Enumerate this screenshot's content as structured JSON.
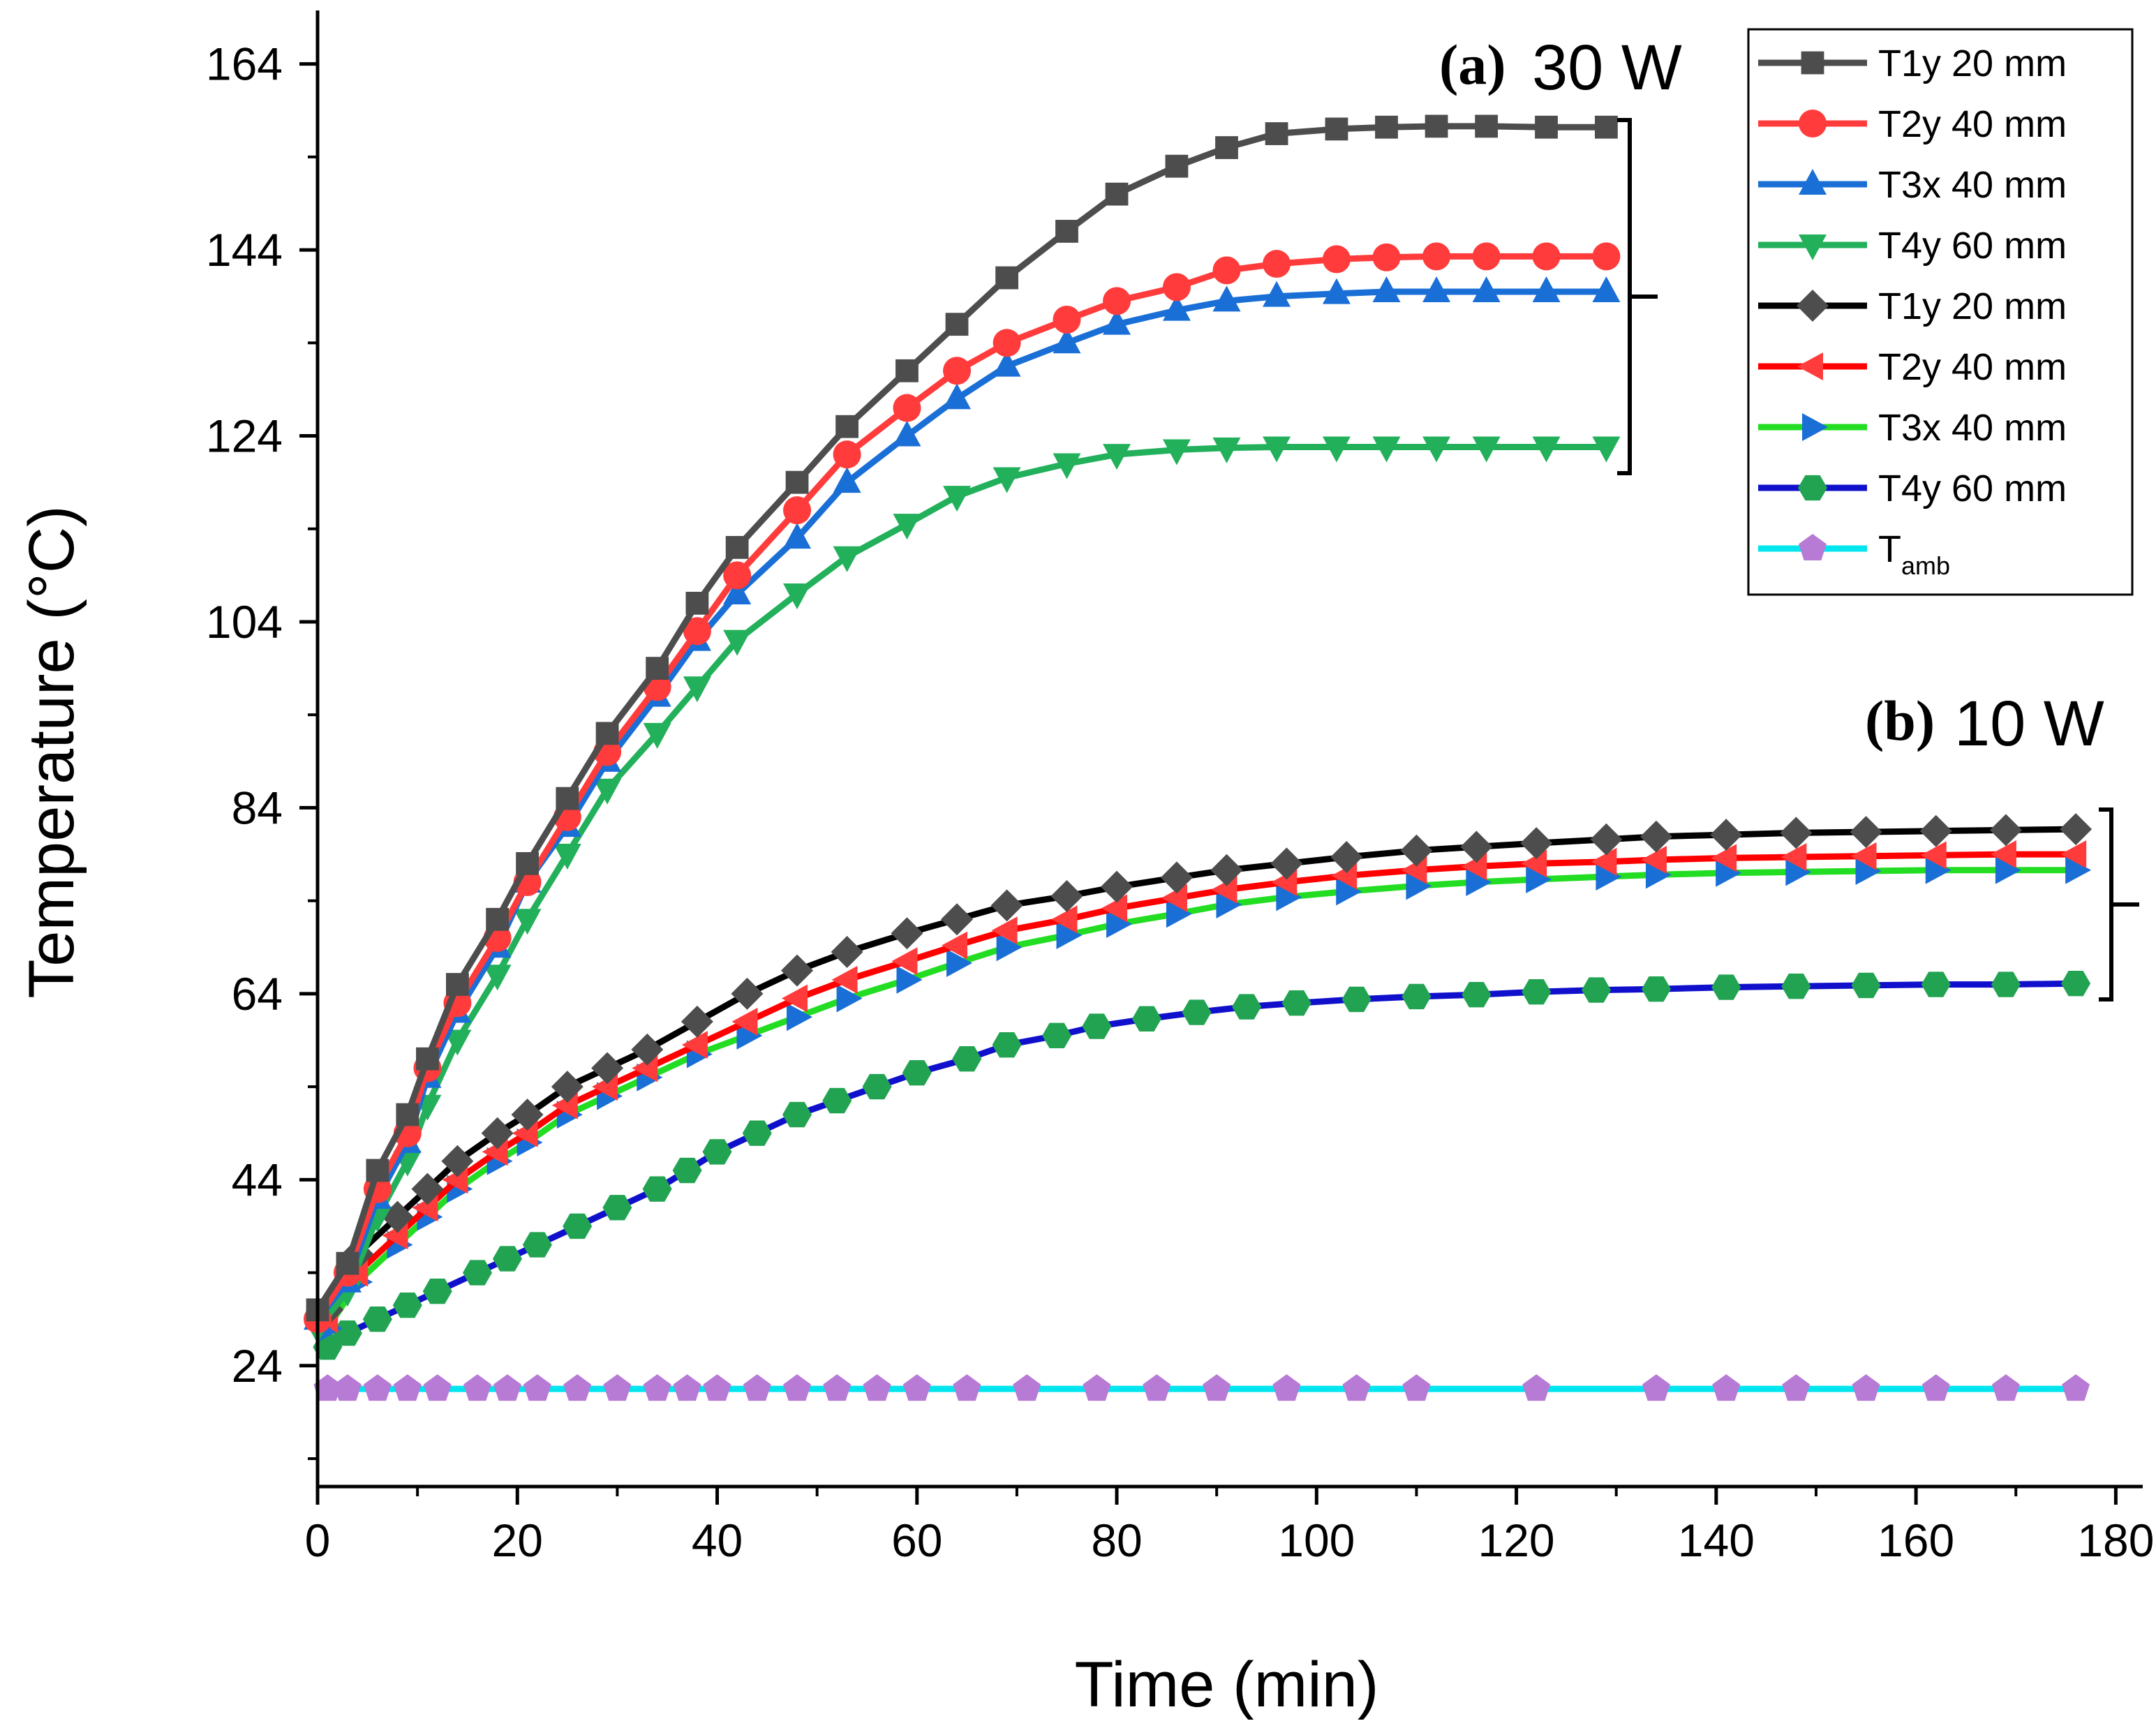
{
  "chart_data": {
    "type": "line",
    "xlabel": "Time (min)",
    "ylabel": "Temperature (°C)",
    "xlim": [
      0,
      182
    ],
    "ylim": [
      11,
      169
    ],
    "xticks": [
      0,
      20,
      40,
      60,
      80,
      100,
      120,
      140,
      160,
      180
    ],
    "yticks": [
      24,
      44,
      64,
      84,
      104,
      124,
      144,
      164
    ],
    "grid": false,
    "legend_position": "top-right",
    "annotations": [
      {
        "letter": "(a)",
        "text": "30 W"
      },
      {
        "letter": "(b)",
        "text": "10 W"
      }
    ],
    "series": [
      {
        "name": "T1y 20 mm",
        "group": "30 W",
        "color": "#4d4d4d",
        "marker": "square",
        "points": [
          [
            0,
            30
          ],
          [
            3,
            35
          ],
          [
            6,
            45
          ],
          [
            9,
            51
          ],
          [
            11,
            57
          ],
          [
            14,
            65
          ],
          [
            18,
            72
          ],
          [
            21,
            78
          ],
          [
            25,
            85
          ],
          [
            29,
            92
          ],
          [
            34,
            99
          ],
          [
            38,
            106
          ],
          [
            42,
            112
          ],
          [
            48,
            119
          ],
          [
            53,
            125
          ],
          [
            59,
            131
          ],
          [
            64,
            136
          ],
          [
            69,
            141
          ],
          [
            75,
            146
          ],
          [
            80,
            150
          ],
          [
            86,
            153
          ],
          [
            91,
            155
          ],
          [
            96,
            156.5
          ],
          [
            102,
            157
          ],
          [
            107,
            157.2
          ],
          [
            112,
            157.3
          ],
          [
            117,
            157.3
          ],
          [
            123,
            157.2
          ],
          [
            129,
            157.2
          ]
        ]
      },
      {
        "name": "T2y 40 mm",
        "group": "30 W",
        "color": "#ff3b3b",
        "marker": "circle",
        "points": [
          [
            0,
            29
          ],
          [
            3,
            34
          ],
          [
            6,
            43
          ],
          [
            9,
            49
          ],
          [
            11,
            56
          ],
          [
            14,
            63
          ],
          [
            18,
            70
          ],
          [
            21,
            76
          ],
          [
            25,
            83
          ],
          [
            29,
            90
          ],
          [
            34,
            97
          ],
          [
            38,
            103
          ],
          [
            42,
            109
          ],
          [
            48,
            116
          ],
          [
            53,
            122
          ],
          [
            59,
            127
          ],
          [
            64,
            131
          ],
          [
            69,
            134
          ],
          [
            75,
            136.5
          ],
          [
            80,
            138.5
          ],
          [
            86,
            140
          ],
          [
            91,
            141.8
          ],
          [
            96,
            142.5
          ],
          [
            102,
            143
          ],
          [
            107,
            143.2
          ],
          [
            112,
            143.3
          ],
          [
            117,
            143.3
          ],
          [
            123,
            143.3
          ],
          [
            129,
            143.3
          ]
        ]
      },
      {
        "name": "T3x 40 mm",
        "group": "30 W",
        "color": "#1a6fd6",
        "marker": "triangle-up",
        "points": [
          [
            0,
            29
          ],
          [
            3,
            33
          ],
          [
            6,
            42
          ],
          [
            9,
            48
          ],
          [
            11,
            55
          ],
          [
            14,
            62
          ],
          [
            18,
            69
          ],
          [
            21,
            76
          ],
          [
            25,
            82
          ],
          [
            29,
            89
          ],
          [
            34,
            96
          ],
          [
            38,
            102
          ],
          [
            42,
            107
          ],
          [
            48,
            113
          ],
          [
            53,
            119
          ],
          [
            59,
            124
          ],
          [
            64,
            128
          ],
          [
            69,
            131.5
          ],
          [
            75,
            134
          ],
          [
            80,
            136
          ],
          [
            86,
            137.5
          ],
          [
            91,
            138.5
          ],
          [
            96,
            139
          ],
          [
            102,
            139.3
          ],
          [
            107,
            139.5
          ],
          [
            112,
            139.5
          ],
          [
            117,
            139.5
          ],
          [
            123,
            139.5
          ],
          [
            129,
            139.5
          ]
        ]
      },
      {
        "name": "T4y 60 mm",
        "group": "30 W",
        "color": "#22b05b",
        "marker": "triangle-down",
        "points": [
          [
            0,
            28
          ],
          [
            3,
            32
          ],
          [
            6,
            40
          ],
          [
            9,
            46
          ],
          [
            11,
            52
          ],
          [
            14,
            59
          ],
          [
            18,
            66
          ],
          [
            21,
            72
          ],
          [
            25,
            79
          ],
          [
            29,
            86
          ],
          [
            34,
            92
          ],
          [
            38,
            97
          ],
          [
            42,
            102
          ],
          [
            48,
            107
          ],
          [
            53,
            111
          ],
          [
            59,
            114.5
          ],
          [
            64,
            117.5
          ],
          [
            69,
            119.5
          ],
          [
            75,
            121
          ],
          [
            80,
            122
          ],
          [
            86,
            122.5
          ],
          [
            91,
            122.7
          ],
          [
            96,
            122.8
          ],
          [
            102,
            122.8
          ],
          [
            107,
            122.8
          ],
          [
            112,
            122.8
          ],
          [
            117,
            122.8
          ],
          [
            123,
            122.8
          ],
          [
            129,
            122.8
          ]
        ]
      },
      {
        "name": "T1y 20 mm",
        "group": "10 W",
        "color": "#000000",
        "line_color": "#000000",
        "marker_color": "#4d4d4d",
        "marker": "diamond",
        "points": [
          [
            1,
            30
          ],
          [
            4,
            36
          ],
          [
            8,
            40
          ],
          [
            11,
            43
          ],
          [
            14,
            46
          ],
          [
            18,
            49
          ],
          [
            21,
            51
          ],
          [
            25,
            54
          ],
          [
            29,
            56
          ],
          [
            33,
            58
          ],
          [
            38,
            61
          ],
          [
            43,
            64
          ],
          [
            48,
            66.5
          ],
          [
            53,
            68.5
          ],
          [
            59,
            70.5
          ],
          [
            64,
            72
          ],
          [
            69,
            73.5
          ],
          [
            75,
            74.5
          ],
          [
            80,
            75.5
          ],
          [
            86,
            76.5
          ],
          [
            91,
            77.3
          ],
          [
            97,
            78
          ],
          [
            103,
            78.7
          ],
          [
            110,
            79.4
          ],
          [
            116,
            79.8
          ],
          [
            122,
            80.2
          ],
          [
            129,
            80.6
          ],
          [
            134,
            80.9
          ],
          [
            141,
            81.1
          ],
          [
            148,
            81.3
          ],
          [
            155,
            81.4
          ],
          [
            162,
            81.5
          ],
          [
            169,
            81.6
          ],
          [
            176,
            81.7
          ]
        ]
      },
      {
        "name": "T2y 40 mm",
        "group": "10 W",
        "color": "#ff2020",
        "line_color": "#ff0000",
        "marker_color": "#ff3b3b",
        "marker": "triangle-left",
        "points": [
          [
            1,
            29
          ],
          [
            4,
            34
          ],
          [
            8,
            38
          ],
          [
            11,
            41
          ],
          [
            14,
            44
          ],
          [
            18,
            47
          ],
          [
            21,
            49
          ],
          [
            25,
            52
          ],
          [
            29,
            54
          ],
          [
            33,
            56
          ],
          [
            38,
            58.5
          ],
          [
            43,
            61
          ],
          [
            48,
            63.5
          ],
          [
            53,
            65.5
          ],
          [
            59,
            67.5
          ],
          [
            64,
            69.2
          ],
          [
            69,
            70.8
          ],
          [
            75,
            72
          ],
          [
            80,
            73.2
          ],
          [
            86,
            74.3
          ],
          [
            91,
            75.2
          ],
          [
            97,
            76
          ],
          [
            103,
            76.7
          ],
          [
            110,
            77.3
          ],
          [
            116,
            77.7
          ],
          [
            122,
            78
          ],
          [
            129,
            78.2
          ],
          [
            134,
            78.4
          ],
          [
            141,
            78.6
          ],
          [
            148,
            78.7
          ],
          [
            155,
            78.8
          ],
          [
            162,
            78.9
          ],
          [
            169,
            79
          ],
          [
            176,
            79
          ]
        ]
      },
      {
        "name": "T3x 40 mm",
        "group": "10 W",
        "color": "#1a6fd6",
        "line_color": "#22dd22",
        "marker_color": "#1a6fd6",
        "marker": "triangle-right",
        "points": [
          [
            1,
            28
          ],
          [
            4,
            33
          ],
          [
            8,
            37
          ],
          [
            11,
            40
          ],
          [
            14,
            43
          ],
          [
            18,
            46
          ],
          [
            21,
            48
          ],
          [
            25,
            51
          ],
          [
            29,
            53
          ],
          [
            33,
            55
          ],
          [
            38,
            57.5
          ],
          [
            43,
            59.5
          ],
          [
            48,
            61.5
          ],
          [
            53,
            63.5
          ],
          [
            59,
            65.5
          ],
          [
            64,
            67.3
          ],
          [
            69,
            69
          ],
          [
            75,
            70.3
          ],
          [
            80,
            71.5
          ],
          [
            86,
            72.6
          ],
          [
            91,
            73.6
          ],
          [
            97,
            74.4
          ],
          [
            103,
            75
          ],
          [
            110,
            75.6
          ],
          [
            116,
            76
          ],
          [
            122,
            76.3
          ],
          [
            129,
            76.6
          ],
          [
            134,
            76.8
          ],
          [
            141,
            77
          ],
          [
            148,
            77.1
          ],
          [
            155,
            77.2
          ],
          [
            162,
            77.3
          ],
          [
            169,
            77.3
          ],
          [
            176,
            77.3
          ]
        ]
      },
      {
        "name": "T4y 60 mm",
        "group": "10 W",
        "color": "#22a352",
        "line_color": "#1010cc",
        "marker_color": "#22a352",
        "marker": "hexagon",
        "points": [
          [
            1,
            26
          ],
          [
            3,
            27.5
          ],
          [
            6,
            29
          ],
          [
            9,
            30.5
          ],
          [
            12,
            32
          ],
          [
            16,
            34
          ],
          [
            19,
            35.5
          ],
          [
            22,
            37
          ],
          [
            26,
            39
          ],
          [
            30,
            41
          ],
          [
            34,
            43
          ],
          [
            37,
            45
          ],
          [
            40,
            47
          ],
          [
            44,
            49
          ],
          [
            48,
            51
          ],
          [
            52,
            52.5
          ],
          [
            56,
            54
          ],
          [
            60,
            55.5
          ],
          [
            65,
            57
          ],
          [
            69,
            58.5
          ],
          [
            74,
            59.5
          ],
          [
            78,
            60.5
          ],
          [
            83,
            61.3
          ],
          [
            88,
            62
          ],
          [
            93,
            62.6
          ],
          [
            98,
            63
          ],
          [
            104,
            63.4
          ],
          [
            110,
            63.7
          ],
          [
            116,
            63.9
          ],
          [
            122,
            64.2
          ],
          [
            128,
            64.4
          ],
          [
            134,
            64.5
          ],
          [
            141,
            64.7
          ],
          [
            148,
            64.8
          ],
          [
            155,
            64.9
          ],
          [
            162,
            65
          ],
          [
            169,
            65
          ],
          [
            176,
            65.1
          ]
        ]
      },
      {
        "name": "Tamb",
        "group": "ambient",
        "color": "#b77bd6",
        "line_color": "#00e5ee",
        "marker_color": "#b77bd6",
        "marker": "pentagon",
        "points": [
          [
            1,
            21.5
          ],
          [
            3,
            21.5
          ],
          [
            6,
            21.5
          ],
          [
            9,
            21.5
          ],
          [
            12,
            21.5
          ],
          [
            16,
            21.5
          ],
          [
            19,
            21.5
          ],
          [
            22,
            21.5
          ],
          [
            26,
            21.5
          ],
          [
            30,
            21.5
          ],
          [
            34,
            21.5
          ],
          [
            37,
            21.5
          ],
          [
            40,
            21.5
          ],
          [
            44,
            21.5
          ],
          [
            48,
            21.5
          ],
          [
            52,
            21.5
          ],
          [
            56,
            21.5
          ],
          [
            60,
            21.5
          ],
          [
            65,
            21.5
          ],
          [
            71,
            21.5
          ],
          [
            78,
            21.5
          ],
          [
            84,
            21.5
          ],
          [
            90,
            21.5
          ],
          [
            97,
            21.5
          ],
          [
            104,
            21.5
          ],
          [
            110,
            21.5
          ],
          [
            122,
            21.5
          ],
          [
            134,
            21.5
          ],
          [
            141,
            21.5
          ],
          [
            148,
            21.5
          ],
          [
            155,
            21.5
          ],
          [
            162,
            21.5
          ],
          [
            169,
            21.5
          ],
          [
            176,
            21.5
          ]
        ]
      }
    ],
    "legend": [
      {
        "text": "T1y 20 mm",
        "sub": ""
      },
      {
        "text": "T2y 40 mm",
        "sub": ""
      },
      {
        "text": "T3x 40 mm",
        "sub": ""
      },
      {
        "text": "T4y 60 mm",
        "sub": ""
      },
      {
        "text": "T1y 20 mm",
        "sub": ""
      },
      {
        "text": "T2y 40 mm",
        "sub": ""
      },
      {
        "text": "T3x 40 mm",
        "sub": ""
      },
      {
        "text": "T4y 60 mm",
        "sub": ""
      },
      {
        "text": "T",
        "sub": "amb"
      }
    ]
  }
}
